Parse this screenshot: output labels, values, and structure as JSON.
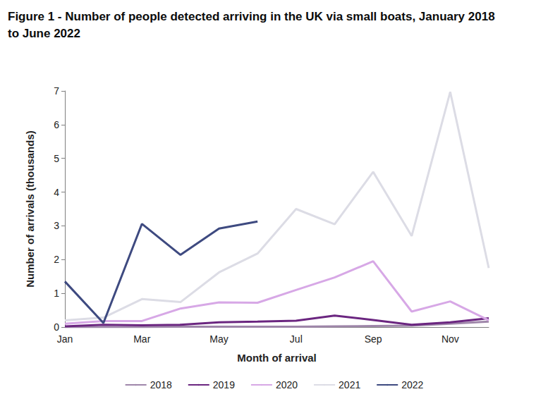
{
  "chart_data": {
    "type": "line",
    "title": "Figure 1 - Number of people detected arriving in the UK via small boats, January 2018\nto June 2022",
    "x_label": "Month of arrival",
    "y_label": "Number of arrivals (thousands)",
    "categories": [
      "Jan",
      null,
      "Mar",
      null,
      "May",
      null,
      "Jul",
      null,
      "Sep",
      null,
      "Nov",
      null
    ],
    "ylim": [
      0,
      7
    ],
    "yticks": [
      0,
      1,
      2,
      3,
      4,
      5,
      6,
      7
    ],
    "grid": false,
    "legend": "bottom",
    "series": [
      {
        "name": "2018",
        "color": "#9f87aa",
        "values": [
          0,
          0,
          0,
          0.01,
          0.01,
          0.01,
          0.01,
          0.02,
          0.03,
          0.04,
          0.1,
          0.16
        ]
      },
      {
        "name": "2019",
        "color": "#6b2680",
        "values": [
          0.02,
          0.07,
          0.05,
          0.07,
          0.14,
          0.16,
          0.19,
          0.34,
          0.21,
          0.07,
          0.14,
          0.26
        ]
      },
      {
        "name": "2020",
        "color": "#d7a8e6",
        "values": [
          0.1,
          0.18,
          0.18,
          0.55,
          0.73,
          0.72,
          1.1,
          1.47,
          1.95,
          0.46,
          0.76,
          0.2
        ]
      },
      {
        "name": "2021",
        "color": "#dcdce5",
        "values": [
          0.2,
          0.28,
          0.83,
          0.74,
          1.62,
          2.18,
          3.5,
          3.05,
          4.6,
          2.7,
          6.97,
          1.75
        ]
      },
      {
        "name": "2022",
        "color": "#3e4a80",
        "values": [
          1.35,
          0.12,
          3.06,
          2.14,
          2.92,
          3.13,
          null,
          null,
          null,
          null,
          null,
          null
        ]
      }
    ]
  }
}
